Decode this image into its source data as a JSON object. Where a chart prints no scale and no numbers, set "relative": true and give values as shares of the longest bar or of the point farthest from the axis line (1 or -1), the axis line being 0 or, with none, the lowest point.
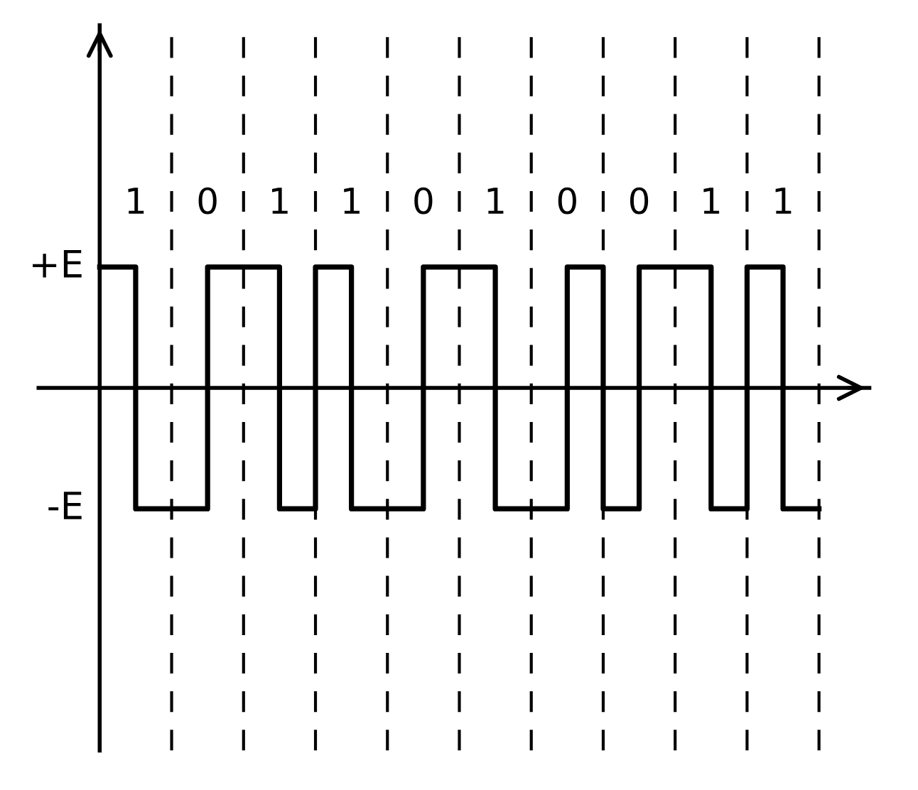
{
  "chart_data": {
    "type": "step",
    "relative": true,
    "categories": [
      null,
      "1",
      null,
      "0",
      null,
      "1",
      null,
      "1",
      null,
      "0",
      null,
      "1",
      null,
      "0",
      null,
      "0",
      null,
      "1",
      null,
      "1",
      null
    ],
    "series": [
      {
        "color": "#000000",
        "values": [
          1,
          -1,
          -1,
          1,
          1,
          -1,
          1,
          -1,
          -1,
          1,
          1,
          -1,
          -1,
          1,
          -1,
          1,
          1,
          -1,
          1,
          -1,
          -1
        ]
      }
    ],
    "annotations": [
      "+E",
      "-E"
    ],
    "grid": "x",
    "line_style": "solid"
  }
}
